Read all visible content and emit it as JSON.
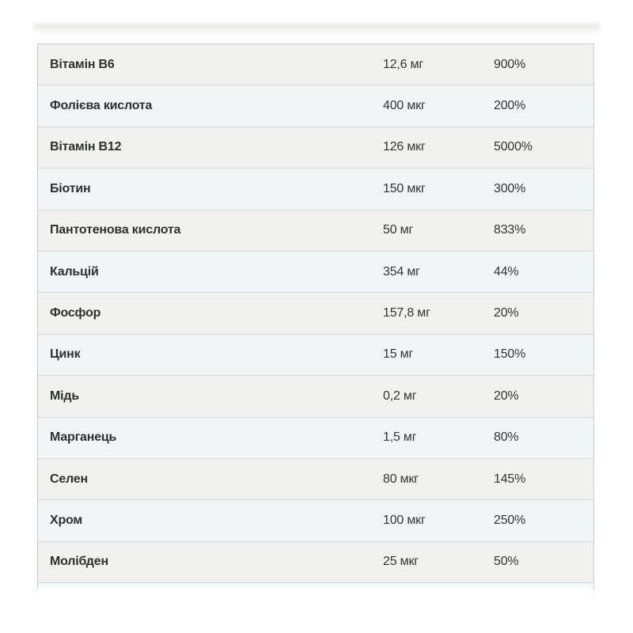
{
  "colors": {
    "row_odd_bg": "#f1f2f0",
    "row_even_bg": "#f0f6f6",
    "row_separator": "#d5d8d7",
    "table_border": "#c9cdcc",
    "text": "#2e3030",
    "page_background": "#ffffff"
  },
  "table": {
    "rows": [
      {
        "name": "Вітамін B6",
        "amount": "12,6 мг",
        "daily_value": "900%"
      },
      {
        "name": "Фолієва кислота",
        "amount": "400 мкг",
        "daily_value": "200%"
      },
      {
        "name": "Вітамін B12",
        "amount": "126 мкг",
        "daily_value": "5000%"
      },
      {
        "name": "Біотин",
        "amount": "150 мкг",
        "daily_value": "300%"
      },
      {
        "name": "Пантотенова кислота",
        "amount": "50 мг",
        "daily_value": "833%"
      },
      {
        "name": "Кальцій",
        "amount": "354 мг",
        "daily_value": "44%"
      },
      {
        "name": "Фосфор",
        "amount": "157,8 мг",
        "daily_value": "20%"
      },
      {
        "name": "Цинк",
        "amount": "15 мг",
        "daily_value": "150%"
      },
      {
        "name": "Мідь",
        "amount": "0,2 мг",
        "daily_value": "20%"
      },
      {
        "name": "Марганець",
        "amount": "1,5 мг",
        "daily_value": "80%"
      },
      {
        "name": "Селен",
        "amount": "80 мкг",
        "daily_value": "145%"
      },
      {
        "name": "Хром",
        "amount": "100 мкг",
        "daily_value": "250%"
      },
      {
        "name": "Молібден",
        "amount": "25 мкг",
        "daily_value": "50%"
      }
    ]
  },
  "chart_data": {
    "type": "table",
    "rows": [
      [
        "Вітамін B6",
        "12,6 мг",
        "900%"
      ],
      [
        "Фолієва кислота",
        "400 мкг",
        "200%"
      ],
      [
        "Вітамін B12",
        "126 мкг",
        "5000%"
      ],
      [
        "Біотин",
        "150 мкг",
        "300%"
      ],
      [
        "Пантотенова кислота",
        "50 мг",
        "833%"
      ],
      [
        "Кальцій",
        "354 мг",
        "44%"
      ],
      [
        "Фосфор",
        "157,8 мг",
        "20%"
      ],
      [
        "Цинк",
        "15 мг",
        "150%"
      ],
      [
        "Мідь",
        "0,2 мг",
        "20%"
      ],
      [
        "Марганець",
        "1,5 мг",
        "80%"
      ],
      [
        "Селен",
        "80 мкг",
        "145%"
      ],
      [
        "Хром",
        "100 мкг",
        "250%"
      ],
      [
        "Молібден",
        "25 мкг",
        "50%"
      ]
    ],
    "layout": {
      "grid": "horizontal separators only",
      "alternating_rows": true,
      "header_visible": false
    }
  }
}
